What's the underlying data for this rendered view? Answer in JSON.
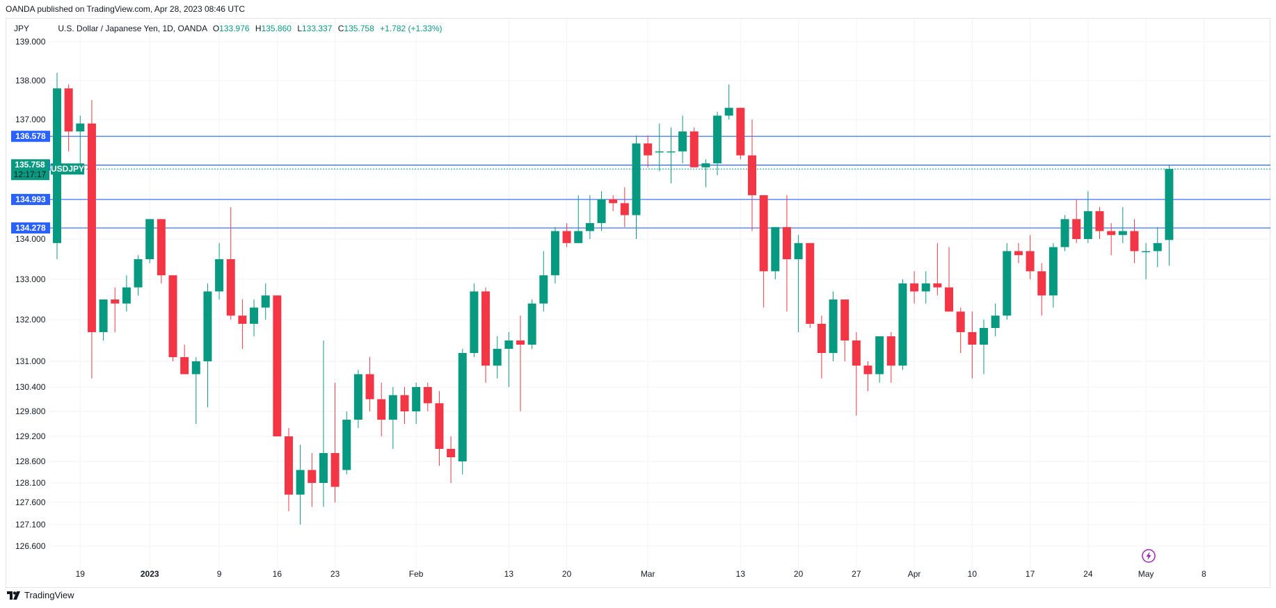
{
  "header": {
    "published_by": "OANDA published on TradingView.com, Apr 28, 2023 08:46 UTC"
  },
  "legend": {
    "currency": "JPY",
    "symbol_desc": "U.S. Dollar / Japanese Yen, 1D, OANDA",
    "open_label": "O",
    "open": "133.976",
    "high_label": "H",
    "high": "135.860",
    "low_label": "L",
    "low": "133.337",
    "close_label": "C",
    "close": "135.758",
    "change": "+1.782 (+1.33%)"
  },
  "footer": {
    "brand": "TradingView"
  },
  "colors": {
    "up": "#089981",
    "down": "#f23645",
    "level": "#2962ff",
    "grid": "#f0f3fa"
  },
  "chart_data": {
    "type": "candlestick",
    "symbol": "USDJPY",
    "price_ticks": [
      "139.000",
      "138.000",
      "137.000",
      "133.000",
      "132.000",
      "131.000",
      "130.400",
      "129.800",
      "129.200",
      "128.600",
      "128.100",
      "127.600",
      "127.100",
      "126.600",
      "134.000"
    ],
    "x_labels": [
      {
        "label": "19",
        "i": 2
      },
      {
        "label": "2023",
        "i": 8
      },
      {
        "label": "9",
        "i": 14
      },
      {
        "label": "16",
        "i": 19
      },
      {
        "label": "23",
        "i": 24
      },
      {
        "label": "Feb",
        "i": 31
      },
      {
        "label": "13",
        "i": 39
      },
      {
        "label": "20",
        "i": 44
      },
      {
        "label": "Mar",
        "i": 51
      },
      {
        "label": "13",
        "i": 59
      },
      {
        "label": "20",
        "i": 64
      },
      {
        "label": "27",
        "i": 69
      },
      {
        "label": "Apr",
        "i": 74
      },
      {
        "label": "10",
        "i": 79
      },
      {
        "label": "17",
        "i": 84
      },
      {
        "label": "24",
        "i": 89
      },
      {
        "label": "May",
        "i": 94
      },
      {
        "label": "8",
        "i": 99
      }
    ],
    "horizontal_levels": [
      "136.578",
      "135.856",
      "134.993",
      "134.278"
    ],
    "last_price": {
      "value": "135.758",
      "symbol": "USDJPY",
      "countdown": "12:17:17"
    },
    "candles": [
      {
        "o": 133.9,
        "h": 138.2,
        "l": 133.5,
        "c": 137.8
      },
      {
        "o": 137.8,
        "h": 137.9,
        "l": 136.2,
        "c": 136.7
      },
      {
        "o": 136.7,
        "h": 137.1,
        "l": 135.8,
        "c": 136.9
      },
      {
        "o": 136.9,
        "h": 137.5,
        "l": 130.6,
        "c": 131.7
      },
      {
        "o": 131.7,
        "h": 132.5,
        "l": 131.5,
        "c": 132.5
      },
      {
        "o": 132.5,
        "h": 132.8,
        "l": 131.7,
        "c": 132.4
      },
      {
        "o": 132.4,
        "h": 133.1,
        "l": 132.2,
        "c": 132.8
      },
      {
        "o": 132.8,
        "h": 133.6,
        "l": 132.6,
        "c": 133.5
      },
      {
        "o": 133.5,
        "h": 134.5,
        "l": 133.4,
        "c": 134.5
      },
      {
        "o": 134.5,
        "h": 134.5,
        "l": 132.9,
        "c": 133.1
      },
      {
        "o": 133.1,
        "h": 133.1,
        "l": 131.0,
        "c": 131.1
      },
      {
        "o": 131.1,
        "h": 131.4,
        "l": 130.7,
        "c": 130.7
      },
      {
        "o": 130.7,
        "h": 131.1,
        "l": 129.5,
        "c": 131.0
      },
      {
        "o": 131.0,
        "h": 132.9,
        "l": 129.9,
        "c": 132.7
      },
      {
        "o": 132.7,
        "h": 133.9,
        "l": 132.5,
        "c": 133.5
      },
      {
        "o": 133.5,
        "h": 134.8,
        "l": 132.0,
        "c": 132.1
      },
      {
        "o": 132.1,
        "h": 132.5,
        "l": 131.3,
        "c": 131.9
      },
      {
        "o": 131.9,
        "h": 132.5,
        "l": 131.6,
        "c": 132.3
      },
      {
        "o": 132.3,
        "h": 132.9,
        "l": 132.0,
        "c": 132.6
      },
      {
        "o": 132.6,
        "h": 132.6,
        "l": 129.2,
        "c": 129.2
      },
      {
        "o": 129.2,
        "h": 129.4,
        "l": 127.4,
        "c": 127.8
      },
      {
        "o": 127.8,
        "h": 129.0,
        "l": 127.1,
        "c": 128.4
      },
      {
        "o": 128.4,
        "h": 128.8,
        "l": 127.5,
        "c": 128.1
      },
      {
        "o": 128.1,
        "h": 131.5,
        "l": 127.5,
        "c": 128.8
      },
      {
        "o": 128.8,
        "h": 130.5,
        "l": 127.6,
        "c": 128.0
      },
      {
        "o": 128.4,
        "h": 129.8,
        "l": 128.3,
        "c": 129.6
      },
      {
        "o": 129.6,
        "h": 130.8,
        "l": 129.4,
        "c": 130.7
      },
      {
        "o": 130.7,
        "h": 131.1,
        "l": 129.8,
        "c": 130.1
      },
      {
        "o": 130.1,
        "h": 130.5,
        "l": 129.2,
        "c": 129.6
      },
      {
        "o": 129.6,
        "h": 130.4,
        "l": 128.9,
        "c": 130.2
      },
      {
        "o": 130.2,
        "h": 130.4,
        "l": 129.5,
        "c": 129.8
      },
      {
        "o": 129.8,
        "h": 130.5,
        "l": 129.5,
        "c": 130.4
      },
      {
        "o": 130.4,
        "h": 130.5,
        "l": 129.8,
        "c": 130.0
      },
      {
        "o": 130.0,
        "h": 130.3,
        "l": 128.5,
        "c": 128.9
      },
      {
        "o": 128.9,
        "h": 129.2,
        "l": 128.1,
        "c": 128.7
      },
      {
        "o": 128.6,
        "h": 131.3,
        "l": 128.3,
        "c": 131.2
      },
      {
        "o": 131.2,
        "h": 132.9,
        "l": 131.1,
        "c": 132.7
      },
      {
        "o": 132.7,
        "h": 132.8,
        "l": 130.5,
        "c": 130.9
      },
      {
        "o": 130.9,
        "h": 131.6,
        "l": 130.6,
        "c": 131.3
      },
      {
        "o": 131.3,
        "h": 131.7,
        "l": 130.4,
        "c": 131.5
      },
      {
        "o": 131.5,
        "h": 132.1,
        "l": 129.8,
        "c": 131.4
      },
      {
        "o": 131.4,
        "h": 132.5,
        "l": 131.3,
        "c": 132.4
      },
      {
        "o": 132.4,
        "h": 133.7,
        "l": 132.2,
        "c": 133.1
      },
      {
        "o": 133.1,
        "h": 134.3,
        "l": 132.9,
        "c": 134.2
      },
      {
        "o": 134.2,
        "h": 134.4,
        "l": 133.8,
        "c": 133.9
      },
      {
        "o": 133.9,
        "h": 135.1,
        "l": 133.9,
        "c": 134.2
      },
      {
        "o": 134.2,
        "h": 135.1,
        "l": 134.0,
        "c": 134.4
      },
      {
        "o": 134.4,
        "h": 135.2,
        "l": 134.2,
        "c": 135.0
      },
      {
        "o": 135.0,
        "h": 135.1,
        "l": 134.7,
        "c": 134.9
      },
      {
        "o": 134.9,
        "h": 135.3,
        "l": 134.3,
        "c": 134.6
      },
      {
        "o": 134.6,
        "h": 136.6,
        "l": 134.0,
        "c": 136.4
      },
      {
        "o": 136.4,
        "h": 136.6,
        "l": 135.8,
        "c": 136.1
      },
      {
        "o": 136.2,
        "h": 136.9,
        "l": 135.7,
        "c": 136.2
      },
      {
        "o": 136.2,
        "h": 136.8,
        "l": 135.4,
        "c": 136.2
      },
      {
        "o": 136.2,
        "h": 137.1,
        "l": 135.9,
        "c": 136.7
      },
      {
        "o": 136.7,
        "h": 136.8,
        "l": 135.8,
        "c": 135.8
      },
      {
        "o": 135.8,
        "h": 136.0,
        "l": 135.3,
        "c": 135.9
      },
      {
        "o": 135.9,
        "h": 137.2,
        "l": 135.6,
        "c": 137.1
      },
      {
        "o": 137.1,
        "h": 137.9,
        "l": 137.0,
        "c": 137.3
      },
      {
        "o": 137.3,
        "h": 137.3,
        "l": 136.0,
        "c": 136.1
      },
      {
        "o": 136.1,
        "h": 137.0,
        "l": 134.2,
        "c": 135.1
      },
      {
        "o": 135.1,
        "h": 135.1,
        "l": 132.3,
        "c": 133.2
      },
      {
        "o": 133.2,
        "h": 134.3,
        "l": 133.0,
        "c": 134.3
      },
      {
        "o": 134.3,
        "h": 135.1,
        "l": 132.2,
        "c": 133.5
      },
      {
        "o": 133.5,
        "h": 134.1,
        "l": 131.7,
        "c": 133.9
      },
      {
        "o": 133.9,
        "h": 133.9,
        "l": 131.8,
        "c": 131.9
      },
      {
        "o": 131.9,
        "h": 132.1,
        "l": 130.6,
        "c": 131.2
      },
      {
        "o": 131.2,
        "h": 132.7,
        "l": 131.0,
        "c": 132.5
      },
      {
        "o": 132.5,
        "h": 132.5,
        "l": 131.0,
        "c": 131.5
      },
      {
        "o": 131.5,
        "h": 131.7,
        "l": 129.7,
        "c": 130.9
      },
      {
        "o": 130.9,
        "h": 131.0,
        "l": 130.3,
        "c": 130.7
      },
      {
        "o": 130.7,
        "h": 131.6,
        "l": 130.5,
        "c": 131.6
      },
      {
        "o": 131.6,
        "h": 131.7,
        "l": 130.5,
        "c": 130.9
      },
      {
        "o": 130.9,
        "h": 133.0,
        "l": 130.8,
        "c": 132.9
      },
      {
        "o": 132.9,
        "h": 133.2,
        "l": 132.4,
        "c": 132.7
      },
      {
        "o": 132.7,
        "h": 133.2,
        "l": 132.4,
        "c": 132.9
      },
      {
        "o": 132.9,
        "h": 133.9,
        "l": 132.6,
        "c": 132.8
      },
      {
        "o": 132.8,
        "h": 133.8,
        "l": 132.2,
        "c": 132.2
      },
      {
        "o": 132.2,
        "h": 132.3,
        "l": 131.2,
        "c": 131.7
      },
      {
        "o": 131.7,
        "h": 132.2,
        "l": 130.6,
        "c": 131.4
      },
      {
        "o": 131.4,
        "h": 132.0,
        "l": 130.7,
        "c": 131.8
      },
      {
        "o": 131.8,
        "h": 132.4,
        "l": 131.6,
        "c": 132.1
      },
      {
        "o": 132.1,
        "h": 133.9,
        "l": 132.0,
        "c": 133.7
      },
      {
        "o": 133.7,
        "h": 133.9,
        "l": 133.4,
        "c": 133.6
      },
      {
        "o": 133.7,
        "h": 134.1,
        "l": 133.0,
        "c": 133.2
      },
      {
        "o": 133.2,
        "h": 133.4,
        "l": 132.1,
        "c": 132.6
      },
      {
        "o": 132.6,
        "h": 133.9,
        "l": 132.3,
        "c": 133.8
      },
      {
        "o": 133.8,
        "h": 134.6,
        "l": 133.7,
        "c": 134.5
      },
      {
        "o": 134.5,
        "h": 135.0,
        "l": 133.9,
        "c": 134.0
      },
      {
        "o": 134.0,
        "h": 135.2,
        "l": 133.9,
        "c": 134.7
      },
      {
        "o": 134.7,
        "h": 134.8,
        "l": 134.0,
        "c": 134.2
      },
      {
        "o": 134.2,
        "h": 134.4,
        "l": 133.6,
        "c": 134.1
      },
      {
        "o": 134.1,
        "h": 134.8,
        "l": 133.9,
        "c": 134.2
      },
      {
        "o": 134.2,
        "h": 134.5,
        "l": 133.4,
        "c": 133.7
      },
      {
        "o": 133.7,
        "h": 133.9,
        "l": 133.0,
        "c": 133.7
      },
      {
        "o": 133.7,
        "h": 134.3,
        "l": 133.3,
        "c": 133.9
      },
      {
        "o": 133.976,
        "h": 135.86,
        "l": 133.337,
        "c": 135.758
      }
    ]
  }
}
